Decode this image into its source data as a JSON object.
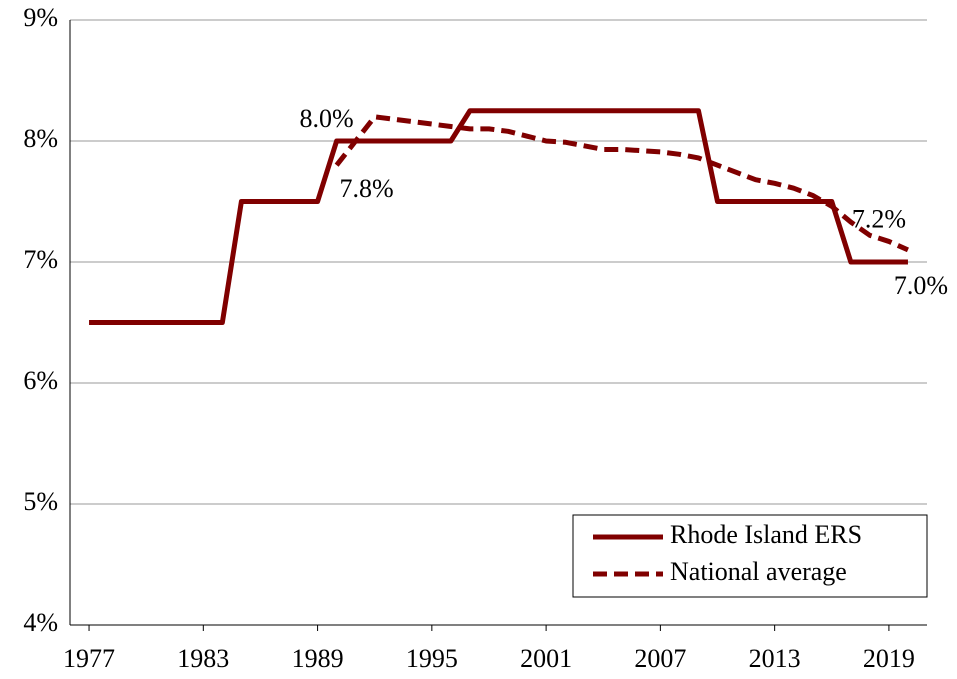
{
  "chart_data": {
    "type": "line",
    "x": [
      1977,
      1978,
      1979,
      1980,
      1981,
      1982,
      1983,
      1984,
      1985,
      1986,
      1987,
      1988,
      1989,
      1990,
      1991,
      1992,
      1993,
      1994,
      1995,
      1996,
      1997,
      1998,
      1999,
      2000,
      2001,
      2002,
      2003,
      2004,
      2005,
      2006,
      2007,
      2008,
      2009,
      2010,
      2011,
      2012,
      2013,
      2014,
      2015,
      2016,
      2017,
      2018,
      2019,
      2020
    ],
    "series": [
      {
        "name": "Rhode Island ERS",
        "color": "#800000",
        "dash": false,
        "values": [
          6.5,
          6.5,
          6.5,
          6.5,
          6.5,
          6.5,
          6.5,
          6.5,
          7.5,
          7.5,
          7.5,
          7.5,
          7.5,
          8.0,
          8.0,
          8.0,
          8.0,
          8.0,
          8.0,
          8.0,
          8.25,
          8.25,
          8.25,
          8.25,
          8.25,
          8.25,
          8.25,
          8.25,
          8.25,
          8.25,
          8.25,
          8.25,
          8.25,
          7.5,
          7.5,
          7.5,
          7.5,
          7.5,
          7.5,
          7.5,
          7.0,
          7.0,
          7.0,
          7.0
        ],
        "value_labels": [
          null,
          null,
          null,
          null,
          null,
          null,
          null,
          null,
          null,
          null,
          null,
          null,
          null,
          "8.0%",
          null,
          null,
          null,
          null,
          null,
          null,
          null,
          null,
          null,
          null,
          null,
          null,
          null,
          null,
          null,
          null,
          null,
          null,
          null,
          null,
          null,
          null,
          null,
          null,
          null,
          null,
          null,
          null,
          null,
          "7.0%"
        ]
      },
      {
        "name": "National average",
        "color": "#800000",
        "dash": true,
        "values": [
          null,
          null,
          null,
          null,
          null,
          null,
          null,
          null,
          null,
          null,
          null,
          null,
          null,
          7.8,
          8.0,
          8.2,
          8.18,
          8.16,
          8.14,
          8.12,
          8.1,
          8.1,
          8.08,
          8.04,
          8.0,
          7.99,
          7.96,
          7.93,
          7.93,
          7.92,
          7.91,
          7.89,
          7.86,
          7.8,
          7.74,
          7.68,
          7.65,
          7.61,
          7.55,
          7.46,
          7.33,
          7.22,
          7.17,
          7.1
        ],
        "value_labels": [
          null,
          null,
          null,
          null,
          null,
          null,
          null,
          null,
          null,
          null,
          null,
          null,
          null,
          "7.8%",
          null,
          null,
          null,
          null,
          null,
          null,
          null,
          null,
          null,
          null,
          null,
          null,
          null,
          null,
          null,
          null,
          null,
          null,
          null,
          null,
          null,
          null,
          null,
          null,
          null,
          null,
          null,
          null,
          "7.2%",
          null
        ]
      }
    ],
    "xlim": [
      1976,
      2021
    ],
    "xticks": [
      1977,
      1983,
      1989,
      1995,
      2001,
      2007,
      2013,
      2019
    ],
    "ylim": [
      4,
      9
    ],
    "yticks": [
      {
        "value": 4,
        "label": "4%"
      },
      {
        "value": 5,
        "label": "5%"
      },
      {
        "value": 6,
        "label": "6%"
      },
      {
        "value": 7,
        "label": "7%"
      },
      {
        "value": 8,
        "label": "8%"
      },
      {
        "value": 9,
        "label": "9%"
      }
    ],
    "grid": true,
    "legend": "lower right"
  }
}
